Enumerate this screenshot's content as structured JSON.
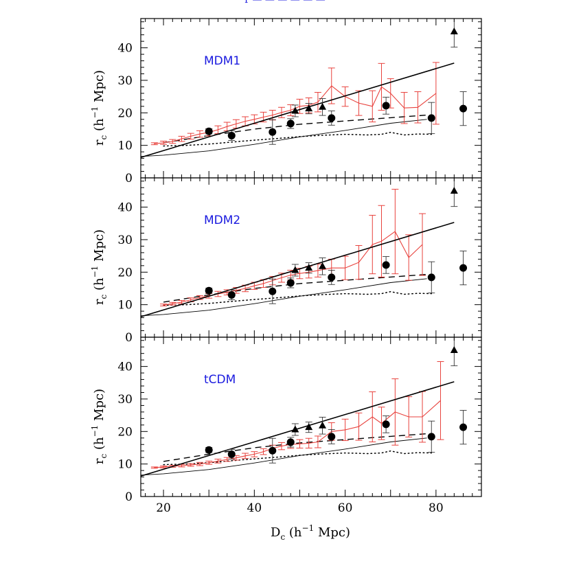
{
  "colors": {
    "model": "#e8413c",
    "label": "#1a1adf",
    "ink": "#000000"
  },
  "chart_data": {
    "type": "scatter",
    "header_fragment": "r̃ — — — — — —",
    "xlabel_parts": [
      "D",
      "c",
      " (h",
      "−1",
      " Mpc)"
    ],
    "ylabel_parts": [
      "r",
      "c",
      " (h",
      "−1",
      " Mpc)"
    ],
    "xlim": [
      15,
      90
    ],
    "ylim": [
      0,
      49
    ],
    "x_ticks": [
      20,
      40,
      60,
      80
    ],
    "y_ticks": [
      0,
      10,
      20,
      30,
      40
    ],
    "observed": {
      "circles": {
        "x": [
          30,
          35,
          44,
          48,
          57,
          69,
          79,
          86
        ],
        "y": [
          14.3,
          13.0,
          14.1,
          16.7,
          18.4,
          22.2,
          18.4,
          21.3
        ],
        "err": [
          0.8,
          1.5,
          3.8,
          1.5,
          2.2,
          2.6,
          4.8,
          5.2
        ]
      },
      "triangles": {
        "x": [
          49,
          52,
          55,
          84
        ],
        "y": [
          20.6,
          21.3,
          21.8,
          45.0
        ],
        "err": [
          1.8,
          1.6,
          2.6,
          4.8
        ]
      },
      "power_law": {
        "x": [
          15,
          84
        ],
        "y": [
          6.3,
          35.3
        ]
      },
      "dashed": {
        "x": [
          20,
          30,
          40,
          50,
          60,
          70,
          78
        ],
        "y": [
          10.8,
          13.0,
          15.0,
          16.5,
          17.5,
          18.5,
          19.3
        ]
      },
      "lower_curve": {
        "x": [
          15,
          20,
          30,
          40,
          50,
          60,
          70,
          78
        ],
        "y": [
          6.6,
          7.0,
          8.3,
          10.3,
          12.6,
          14.6,
          16.8,
          18.0
        ]
      },
      "dotted": {
        "x": [
          20,
          25,
          30,
          35,
          40,
          45,
          50,
          55,
          60,
          65,
          68,
          70,
          73,
          76,
          79
        ],
        "y": [
          9.8,
          10.0,
          10.4,
          11.0,
          11.6,
          12.1,
          12.7,
          13.1,
          13.4,
          13.2,
          13.4,
          14.0,
          13.2,
          13.5,
          13.4
        ]
      }
    },
    "panels": [
      {
        "label": "MDM1",
        "model_x": [
          18,
          20,
          22,
          24,
          26,
          28,
          30,
          32,
          34,
          36,
          38,
          40,
          42,
          44,
          46,
          48,
          50,
          52,
          54,
          57,
          60,
          63,
          66,
          68,
          70,
          73,
          76,
          80
        ],
        "model_y": [
          10.5,
          10.8,
          11.2,
          12.0,
          12.8,
          13.5,
          14.0,
          14.8,
          15.8,
          16.6,
          17.4,
          18.0,
          18.7,
          19.3,
          20.1,
          20.8,
          22.0,
          22.3,
          23.3,
          28.3,
          25.0,
          23.0,
          22.0,
          28.0,
          26.0,
          21.5,
          21.7,
          26.0
        ],
        "model_err": [
          0.3,
          0.5,
          0.6,
          0.8,
          0.9,
          1.0,
          1.1,
          1.2,
          1.3,
          1.3,
          1.4,
          1.4,
          1.5,
          1.5,
          1.6,
          1.7,
          2.2,
          2.3,
          3.0,
          5.5,
          3.0,
          3.8,
          4.8,
          7.2,
          4.5,
          4.8,
          4.8,
          9.5
        ]
      },
      {
        "label": "MDM2",
        "model_x": [
          20,
          22,
          24,
          26,
          28,
          30,
          32,
          34,
          36,
          38,
          40,
          42,
          44,
          46,
          48,
          50,
          52,
          54,
          57,
          60,
          63,
          66,
          68,
          71,
          74,
          77
        ],
        "model_y": [
          9.9,
          10.3,
          10.8,
          11.5,
          12.2,
          12.7,
          13.3,
          13.8,
          14.4,
          15.0,
          15.8,
          16.5,
          17.4,
          18.3,
          19.1,
          19.6,
          20.0,
          20.5,
          21.3,
          21.3,
          23.0,
          28.5,
          29.5,
          32.5,
          24.5,
          28.5
        ],
        "model_err": [
          0.3,
          0.4,
          0.5,
          0.6,
          0.6,
          0.7,
          0.8,
          0.8,
          0.9,
          1.0,
          1.1,
          1.2,
          1.3,
          1.4,
          1.5,
          1.6,
          1.8,
          2.0,
          2.7,
          3.6,
          5.2,
          9.0,
          11.0,
          13.0,
          7.0,
          9.5
        ]
      },
      {
        "label": "tCDM",
        "model_x": [
          18,
          20,
          22,
          24,
          26,
          28,
          30,
          32,
          34,
          36,
          38,
          40,
          42,
          44,
          46,
          48,
          50,
          52,
          54,
          57,
          60,
          63,
          66,
          68,
          71,
          74,
          77,
          81
        ],
        "model_y": [
          8.9,
          9.1,
          9.3,
          9.5,
          9.7,
          10.0,
          10.4,
          10.9,
          11.4,
          11.9,
          12.5,
          13.0,
          13.8,
          14.8,
          15.5,
          16.0,
          16.2,
          16.4,
          16.8,
          20.0,
          20.5,
          21.5,
          24.5,
          22.5,
          26.0,
          24.5,
          24.5,
          29.5
        ],
        "model_err": [
          0.2,
          0.3,
          0.3,
          0.4,
          0.4,
          0.5,
          0.5,
          0.6,
          0.6,
          0.7,
          0.8,
          0.8,
          0.9,
          1.0,
          1.1,
          1.2,
          1.3,
          1.5,
          1.8,
          2.7,
          3.3,
          4.2,
          7.7,
          5.0,
          10.2,
          6.2,
          7.8,
          12.0
        ]
      }
    ]
  }
}
